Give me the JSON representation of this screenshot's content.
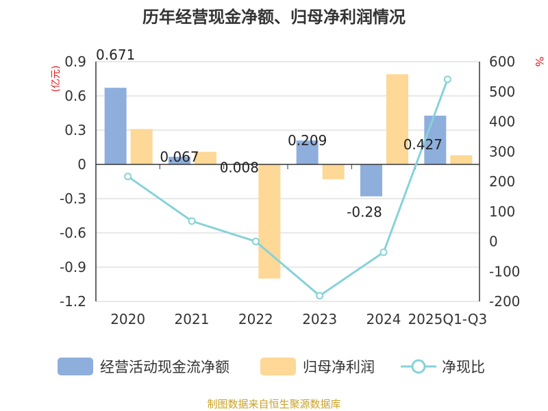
{
  "chart_data": {
    "type": "bar+line",
    "title": "历年经营现金净额、归母净利润情况",
    "categories": [
      "2020",
      "2021",
      "2022",
      "2023",
      "2024",
      "2025Q1-Q3"
    ],
    "series": [
      {
        "name": "经营活动现金流净额",
        "type": "bar",
        "axis": "left",
        "color": "#8eaedc",
        "values": [
          0.671,
          0.067,
          0.008,
          0.209,
          -0.28,
          0.427
        ]
      },
      {
        "name": "归母净利润",
        "type": "bar",
        "axis": "left",
        "color": "#fdd896",
        "values": [
          0.31,
          0.11,
          -1.0,
          -0.13,
          0.79,
          0.08
        ]
      },
      {
        "name": "净现比",
        "type": "line",
        "axis": "right",
        "color": "#86d2d8",
        "values": [
          217,
          68,
          0,
          -181,
          -36,
          541
        ]
      }
    ],
    "data_labels": [
      "0.671",
      "0.067",
      "0.008",
      "0.209",
      "-0.28",
      "0.427"
    ],
    "y_left": {
      "unit": "(亿元)",
      "min": -1.2,
      "max": 0.9,
      "ticks": [
        0.9,
        0.6,
        0.3,
        0,
        -0.3,
        -0.6,
        -0.9,
        -1.2
      ],
      "tick_labels": [
        "0.9",
        "0.6",
        "0.3",
        "0",
        "-0.3",
        "-0.6",
        "-0.9",
        "-1.2"
      ]
    },
    "y_right": {
      "unit": "%",
      "min": -200,
      "max": 600,
      "ticks": [
        600,
        500,
        400,
        300,
        200,
        100,
        0,
        -100,
        -200
      ],
      "tick_labels": [
        "600",
        "500",
        "400",
        "300",
        "200",
        "100",
        "0",
        "-100",
        "-200"
      ]
    },
    "grid": true,
    "legend_position": "bottom"
  },
  "source": "制图数据来自恒生聚源数据库"
}
